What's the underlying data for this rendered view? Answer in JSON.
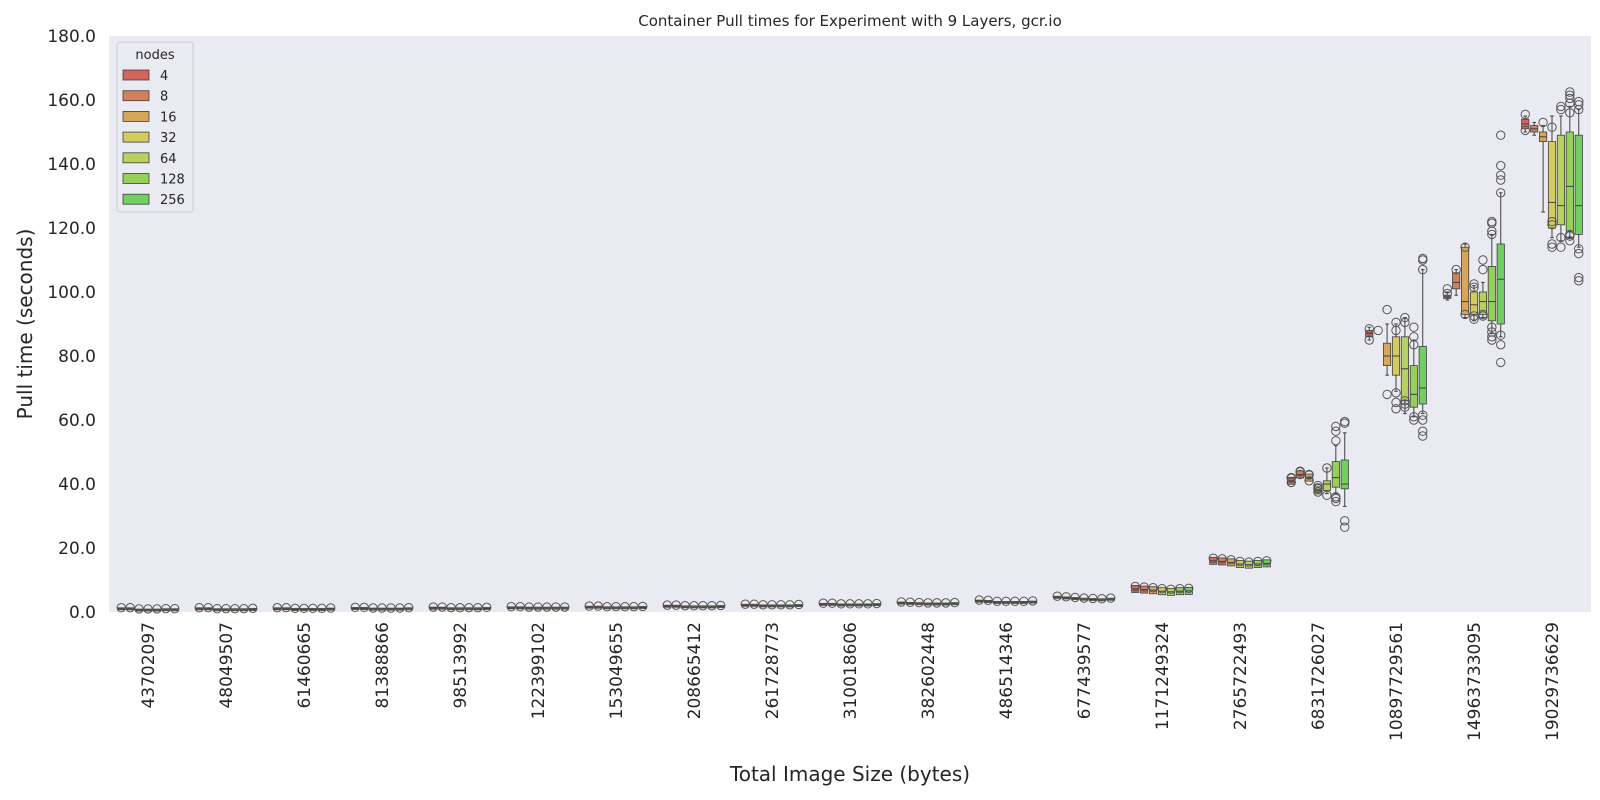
{
  "chart_data": {
    "type": "box",
    "title": "Container Pull times for Experiment with 9 Layers, gcr.io",
    "xlabel": "Total Image Size (bytes)",
    "ylabel": "Pull time (seconds)",
    "ylim": [
      0,
      180
    ],
    "yticks": [
      "0.0",
      "20.0",
      "40.0",
      "60.0",
      "80.0",
      "100.0",
      "120.0",
      "140.0",
      "160.0",
      "180.0"
    ],
    "grid": false,
    "legend": {
      "title": "nodes",
      "placement": "top-left",
      "entries": [
        "4",
        "8",
        "16",
        "32",
        "64",
        "128",
        "256"
      ]
    },
    "colors": [
      "#d2665f",
      "#d27f5a",
      "#d6a65a",
      "#d2cc5e",
      "#b7d05f",
      "#97cf5c",
      "#6fd05f"
    ],
    "categories": [
      "43702097",
      "48049507",
      "61460665",
      "81388866",
      "98513992",
      "122399102",
      "153049655",
      "208665412",
      "261728773",
      "310018606",
      "382602448",
      "486514346",
      "677439577",
      "1171249324",
      "2765722493",
      "6831726027",
      "10897729561",
      "14963733095",
      "19029736629"
    ],
    "series": [
      {
        "name": "4",
        "medians": [
          1.0,
          1.0,
          1.0,
          1.1,
          1.2,
          1.3,
          1.5,
          1.8,
          2.1,
          2.4,
          2.8,
          3.4,
          4.6,
          7.2,
          16.0,
          41.0,
          87.0,
          98.5,
          152.5
        ]
      },
      {
        "name": "8",
        "medians": [
          1.0,
          1.0,
          1.0,
          1.1,
          1.2,
          1.3,
          1.5,
          1.8,
          2.1,
          2.4,
          2.7,
          3.3,
          4.4,
          7.0,
          15.8,
          43.0,
          null,
          103.0,
          151.0
        ]
      },
      {
        "name": "16",
        "medians": [
          0.6,
          0.7,
          0.8,
          0.9,
          1.0,
          1.2,
          1.3,
          1.6,
          1.9,
          2.2,
          2.6,
          3.0,
          4.2,
          6.8,
          15.5,
          42.0,
          80.0,
          97.0,
          148.5
        ]
      },
      {
        "name": "32",
        "medians": [
          0.6,
          0.7,
          0.8,
          0.9,
          1.0,
          1.2,
          1.3,
          1.6,
          1.9,
          2.2,
          2.5,
          3.0,
          4.0,
          6.5,
          15.0,
          38.0,
          80.0,
          96.0,
          128.0
        ]
      },
      {
        "name": "64",
        "medians": [
          0.6,
          0.7,
          0.8,
          0.9,
          1.0,
          1.2,
          1.3,
          1.6,
          1.9,
          2.2,
          2.5,
          3.0,
          3.9,
          6.3,
          14.8,
          40.0,
          76.0,
          97.0,
          127.0
        ]
      },
      {
        "name": "128",
        "medians": [
          0.7,
          0.7,
          0.8,
          0.9,
          1.0,
          1.2,
          1.3,
          1.6,
          1.9,
          2.2,
          2.5,
          3.0,
          3.8,
          6.5,
          15.0,
          42.0,
          68.0,
          97.0,
          133.0
        ]
      },
      {
        "name": "256",
        "medians": [
          0.7,
          0.8,
          0.9,
          1.0,
          1.1,
          1.2,
          1.4,
          1.7,
          2.0,
          2.3,
          2.6,
          3.1,
          4.0,
          6.6,
          15.2,
          40.0,
          70.0,
          104.0,
          127.0
        ]
      }
    ],
    "boxes": [
      {
        "cat": 15,
        "s": 6,
        "q1": 38.5,
        "median": 40.0,
        "q3": 47.5,
        "lo": 33.0,
        "hi": 56.0
      },
      {
        "cat": 15,
        "s": 5,
        "q1": 39.0,
        "median": 42.0,
        "q3": 47.0,
        "lo": 37.0,
        "hi": 52.0
      },
      {
        "cat": 15,
        "s": 4,
        "q1": 38.0,
        "median": 40.0,
        "q3": 41.0,
        "lo": 37.0,
        "hi": 45.0
      },
      {
        "cat": 16,
        "s": 0,
        "q1": 86.0,
        "median": 87.0,
        "q3": 88.0,
        "lo": 85.0,
        "hi": 89.0
      },
      {
        "cat": 16,
        "s": 2,
        "q1": 77.0,
        "median": 80.0,
        "q3": 84.0,
        "lo": 74.0,
        "hi": 90.0
      },
      {
        "cat": 16,
        "s": 3,
        "q1": 74.0,
        "median": 80.0,
        "q3": 86.0,
        "lo": 69.0,
        "hi": 90.0
      },
      {
        "cat": 16,
        "s": 4,
        "q1": 66.0,
        "median": 76.0,
        "q3": 86.0,
        "lo": 62.0,
        "hi": 92.0
      },
      {
        "cat": 16,
        "s": 5,
        "q1": 64.0,
        "median": 68.0,
        "q3": 77.0,
        "lo": 61.0,
        "hi": 85.0
      },
      {
        "cat": 16,
        "s": 6,
        "q1": 65.0,
        "median": 70.0,
        "q3": 83.0,
        "lo": 62.0,
        "hi": 107.0
      },
      {
        "cat": 17,
        "s": 0,
        "q1": 98.0,
        "median": 98.5,
        "q3": 99.0,
        "lo": 97.5,
        "hi": 100.0
      },
      {
        "cat": 17,
        "s": 1,
        "q1": 101.0,
        "median": 103.0,
        "q3": 106.0,
        "lo": 99.0,
        "hi": 107.0
      },
      {
        "cat": 17,
        "s": 2,
        "q1": 93.0,
        "median": 97.0,
        "q3": 114.0,
        "lo": 92.0,
        "hi": 115.0
      },
      {
        "cat": 17,
        "s": 3,
        "q1": 93.0,
        "median": 96.0,
        "q3": 100.0,
        "lo": 91.0,
        "hi": 102.0
      },
      {
        "cat": 17,
        "s": 4,
        "q1": 93.0,
        "median": 97.0,
        "q3": 100.0,
        "lo": 92.0,
        "hi": 103.0
      },
      {
        "cat": 17,
        "s": 5,
        "q1": 91.0,
        "median": 97.0,
        "q3": 108.0,
        "lo": 87.0,
        "hi": 118.0
      },
      {
        "cat": 17,
        "s": 6,
        "q1": 90.0,
        "median": 104.0,
        "q3": 115.0,
        "lo": 86.0,
        "hi": 131.0
      },
      {
        "cat": 18,
        "s": 0,
        "q1": 151.0,
        "median": 152.5,
        "q3": 154.0,
        "lo": 150.0,
        "hi": 155.0
      },
      {
        "cat": 18,
        "s": 1,
        "q1": 150.0,
        "median": 151.0,
        "q3": 152.0,
        "lo": 149.0,
        "hi": 153.0
      },
      {
        "cat": 18,
        "s": 2,
        "q1": 147.0,
        "median": 148.5,
        "q3": 150.0,
        "lo": 125.0,
        "hi": 152.0
      },
      {
        "cat": 18,
        "s": 3,
        "q1": 120.0,
        "median": 128.0,
        "q3": 147.0,
        "lo": 117.0,
        "hi": 155.0
      },
      {
        "cat": 18,
        "s": 4,
        "q1": 121.0,
        "median": 127.0,
        "q3": 149.0,
        "lo": 116.0,
        "hi": 155.0
      },
      {
        "cat": 18,
        "s": 5,
        "q1": 119.0,
        "median": 133.0,
        "q3": 150.0,
        "lo": 117.0,
        "hi": 158.0
      },
      {
        "cat": 18,
        "s": 6,
        "q1": 118.0,
        "median": 127.0,
        "q3": 149.0,
        "lo": 114.0,
        "hi": 157.0
      }
    ],
    "outliers": [
      {
        "cat": 15,
        "s": 0,
        "y": [
          40.5,
          42.0
        ]
      },
      {
        "cat": 15,
        "s": 1,
        "y": [
          43.0,
          44.0
        ]
      },
      {
        "cat": 15,
        "s": 2,
        "y": [
          41.0,
          43.0
        ]
      },
      {
        "cat": 15,
        "s": 3,
        "y": [
          37.5,
          38.5,
          39.5
        ]
      },
      {
        "cat": 15,
        "s": 4,
        "y": [
          36.5,
          45.0
        ]
      },
      {
        "cat": 15,
        "s": 5,
        "y": [
          34.5,
          35.5,
          36.0,
          53.5,
          56.5,
          58.0
        ]
      },
      {
        "cat": 15,
        "s": 6,
        "y": [
          26.5,
          28.5,
          59.0,
          59.5
        ]
      },
      {
        "cat": 16,
        "s": 0,
        "y": [
          85.0,
          88.5
        ]
      },
      {
        "cat": 16,
        "s": 1,
        "y": [
          88.0
        ]
      },
      {
        "cat": 16,
        "s": 2,
        "y": [
          68.0,
          94.5
        ]
      },
      {
        "cat": 16,
        "s": 3,
        "y": [
          65.5,
          63.5,
          68.5,
          88.0,
          90.5
        ]
      },
      {
        "cat": 16,
        "s": 4,
        "y": [
          64.0,
          65.0,
          66.0,
          90.5,
          92.0
        ]
      },
      {
        "cat": 16,
        "s": 5,
        "y": [
          60.0,
          61.0,
          83.5,
          86.0,
          89.0
        ]
      },
      {
        "cat": 16,
        "s": 6,
        "y": [
          55.0,
          56.5,
          60.0,
          61.5,
          107.0,
          110.0,
          110.5
        ]
      },
      {
        "cat": 17,
        "s": 0,
        "y": [
          99.5,
          101.0
        ]
      },
      {
        "cat": 17,
        "s": 1,
        "y": [
          107.0
        ]
      },
      {
        "cat": 17,
        "s": 2,
        "y": [
          93.0,
          114.0
        ]
      },
      {
        "cat": 17,
        "s": 3,
        "y": [
          91.5,
          92.5,
          101.5,
          102.5
        ]
      },
      {
        "cat": 17,
        "s": 4,
        "y": [
          92.5,
          93.0,
          107.0,
          110.0
        ]
      },
      {
        "cat": 17,
        "s": 5,
        "y": [
          85.0,
          86.0,
          87.5,
          89.0,
          118.0,
          119.0,
          121.5,
          122.0
        ]
      },
      {
        "cat": 17,
        "s": 6,
        "y": [
          78.0,
          83.5,
          86.5,
          131.0,
          135.0,
          136.5,
          139.5,
          149.0
        ]
      },
      {
        "cat": 18,
        "s": 0,
        "y": [
          150.5,
          155.5
        ]
      },
      {
        "cat": 18,
        "s": 2,
        "y": [
          153.0
        ]
      },
      {
        "cat": 18,
        "s": 3,
        "y": [
          114.0,
          115.0,
          121.0,
          122.0,
          151.5
        ]
      },
      {
        "cat": 18,
        "s": 4,
        "y": [
          114.0,
          117.0,
          157.0,
          158.0
        ]
      },
      {
        "cat": 18,
        "s": 5,
        "y": [
          116.0,
          117.5,
          118.0,
          156.0,
          159.0,
          160.5,
          161.5,
          162.5
        ]
      },
      {
        "cat": 18,
        "s": 6,
        "y": [
          103.5,
          104.5,
          112.0,
          113.5,
          157.0,
          158.5,
          159.5
        ]
      }
    ]
  }
}
